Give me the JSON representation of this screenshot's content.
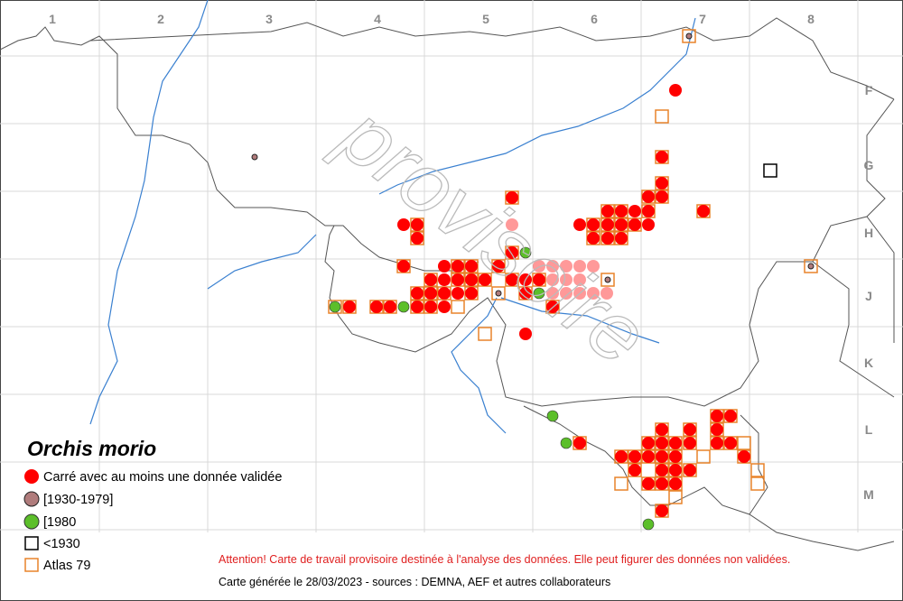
{
  "map": {
    "columns": [
      "1",
      "2",
      "3",
      "4",
      "5",
      "6",
      "7",
      "8"
    ],
    "rows": [
      "F",
      "G",
      "H",
      "J",
      "K",
      "L",
      "M"
    ],
    "watermark": "provisoire",
    "title": "Orchis morio",
    "legend": [
      "Carré avec au moins une donnée validée",
      "[1930-1979]",
      "[1980",
      "<1930",
      "Atlas 79"
    ],
    "warning": "Attention! Carte de travail provisoire destinée à l'analyse des données.  Elle peut figurer des données non validées.",
    "footer": "Carte générée le 28/03/2023 - sources : DEMNA, AEF et autres collaborateurs"
  }
}
